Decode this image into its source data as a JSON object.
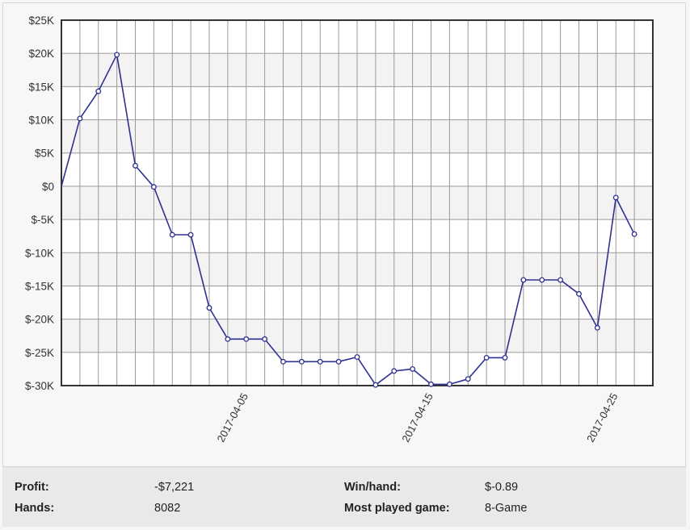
{
  "chart_data": {
    "type": "line",
    "title": "",
    "xlabel": "",
    "ylabel": "",
    "ylim": [
      -30000,
      25000
    ],
    "y_ticks": [
      25000,
      20000,
      15000,
      10000,
      5000,
      0,
      -5000,
      -10000,
      -15000,
      -20000,
      -25000,
      -30000
    ],
    "y_tick_labels": [
      "$25K",
      "$20K",
      "$15K",
      "$10K",
      "$5K",
      "$0",
      "$-5K",
      "$-10K",
      "$-15K",
      "$-20K",
      "$-25K",
      "$-30K"
    ],
    "x_dates": [
      "2017-03-27",
      "2017-03-28",
      "2017-03-29",
      "2017-03-30",
      "2017-03-31",
      "2017-04-01",
      "2017-04-02",
      "2017-04-03",
      "2017-04-04",
      "2017-04-05",
      "2017-04-06",
      "2017-04-07",
      "2017-04-08",
      "2017-04-09",
      "2017-04-10",
      "2017-04-11",
      "2017-04-12",
      "2017-04-13",
      "2017-04-14",
      "2017-04-15",
      "2017-04-16",
      "2017-04-17",
      "2017-04-18",
      "2017-04-19",
      "2017-04-20",
      "2017-04-21",
      "2017-04-22",
      "2017-04-23",
      "2017-04-24",
      "2017-04-25",
      "2017-04-26",
      "2017-04-27"
    ],
    "x_tick_labels": [
      {
        "date": "2017-04-05",
        "label": "2017-04-05"
      },
      {
        "date": "2017-04-15",
        "label": "2017-04-15"
      },
      {
        "date": "2017-04-25",
        "label": "2017-04-25"
      }
    ],
    "series": [
      {
        "x": [
          "2017-03-26",
          "2017-03-27",
          "2017-03-28",
          "2017-03-29",
          "2017-03-30",
          "2017-03-31",
          "2017-04-01",
          "2017-04-02",
          "2017-04-03",
          "2017-04-04",
          "2017-04-05",
          "2017-04-06",
          "2017-04-07",
          "2017-04-08",
          "2017-04-09",
          "2017-04-10",
          "2017-04-11",
          "2017-04-12",
          "2017-04-13",
          "2017-04-14",
          "2017-04-15",
          "2017-04-16",
          "2017-04-17",
          "2017-04-18",
          "2017-04-19",
          "2017-04-20",
          "2017-04-21",
          "2017-04-22",
          "2017-04-23",
          "2017-04-24",
          "2017-04-25",
          "2017-04-26"
        ],
        "values": [
          0,
          10200,
          14300,
          19800,
          3100,
          -100,
          -7300,
          -7300,
          -18300,
          -23000,
          -23000,
          -23000,
          -26400,
          -26400,
          -26400,
          -26400,
          -25700,
          -29900,
          -27800,
          -27500,
          -29800,
          -29800,
          -29000,
          -25800,
          -25800,
          -14100,
          -14100,
          -14100,
          -16200,
          -21300,
          -1700,
          -7200
        ],
        "markers": [
          false,
          true,
          true,
          true,
          true,
          true,
          true,
          true,
          true,
          true,
          true,
          true,
          true,
          true,
          true,
          true,
          true,
          true,
          true,
          true,
          true,
          true,
          true,
          true,
          true,
          true,
          true,
          true,
          true,
          true,
          true,
          true
        ]
      }
    ],
    "grid": true,
    "colors": {
      "line": "#2e3192",
      "grid": "#9a9a9a",
      "band": "#f3f3f3",
      "axis": "#333333"
    }
  },
  "stats": {
    "profit": {
      "label": "Profit:",
      "value": "-$7,221"
    },
    "hands": {
      "label": "Hands:",
      "value": "8082"
    },
    "win_per_hand": {
      "label": "Win/hand:",
      "value": "$-0.89"
    },
    "most_played": {
      "label": "Most played game:",
      "value": "8-Game"
    }
  }
}
